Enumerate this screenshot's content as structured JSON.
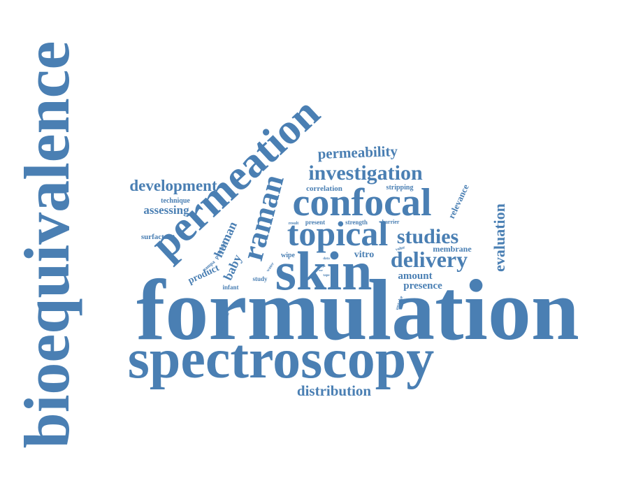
{
  "colors": {
    "word": "#4a7fb3",
    "background": "#ffffff"
  },
  "words": [
    "bioequivalence",
    "formulation",
    "spectroscopy",
    "permeation",
    "skin",
    "confocal",
    "topical",
    "raman",
    "investigation",
    "delivery",
    "studies",
    "development",
    "permeability",
    "evaluation",
    "distribution",
    "assessing",
    "human",
    "baby",
    "product",
    "relevance",
    "amount",
    "presence",
    "membrane",
    "vitro",
    "technique",
    "surfactant",
    "correlation",
    "stripping",
    "infant",
    "porcine",
    "wipe",
    "strength",
    "present",
    "barrier",
    "result",
    "study",
    "available",
    "pampa",
    "water",
    "uptake",
    "value",
    "data",
    "tape",
    "type",
    "use"
  ]
}
